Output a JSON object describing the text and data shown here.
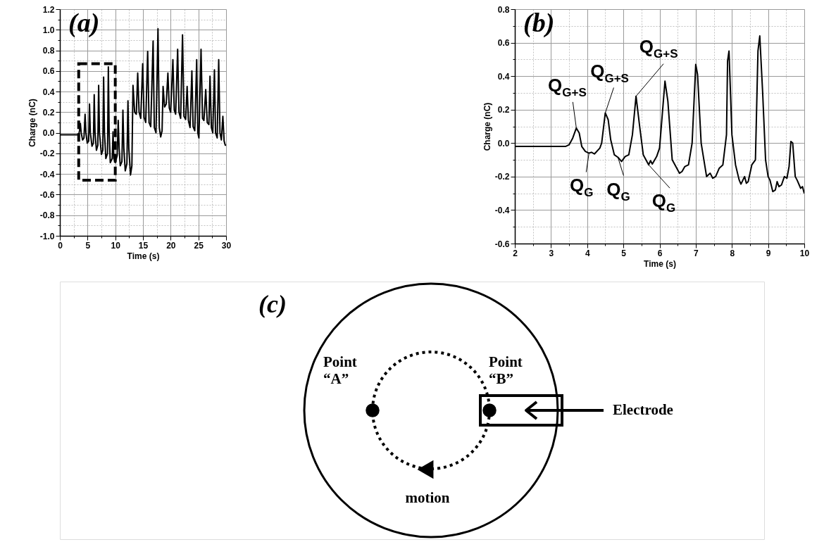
{
  "chart_data": [
    {
      "type": "line",
      "title": "(a)",
      "xlabel": "Time (s)",
      "ylabel": "Charge (nC)",
      "xlim": [
        0,
        30
      ],
      "xticks": [
        0,
        {
          "value": 2.5,
          "label": null
        },
        5,
        {
          "value": 7.5,
          "label": null
        },
        10,
        {
          "value": 12.5,
          "label": null
        },
        15,
        {
          "value": 17.5,
          "label": null
        },
        20,
        {
          "value": 22.5,
          "label": null
        },
        25,
        {
          "value": 27.5,
          "label": null
        },
        30
      ],
      "ylim": [
        -1.0,
        1.2
      ],
      "yticks": [
        {
          "value": -1,
          "label": "-1.0"
        },
        {
          "value": -0.9,
          "label": null
        },
        -0.8,
        {
          "value": -0.7,
          "label": null
        },
        -0.6,
        {
          "value": -0.5,
          "label": null
        },
        -0.4,
        {
          "value": -0.3,
          "label": null
        },
        -0.2,
        {
          "value": -0.1,
          "label": null
        },
        {
          "value": 0,
          "label": "0.0"
        },
        {
          "value": 0.1,
          "label": null
        },
        0.2,
        {
          "value": 0.3,
          "label": null
        },
        0.4,
        {
          "value": 0.5,
          "label": null
        },
        0.6,
        {
          "value": 0.7,
          "label": null
        },
        0.8,
        {
          "value": 0.9,
          "label": null
        },
        {
          "value": 1,
          "label": "1.0"
        },
        {
          "value": 1.1,
          "label": null
        },
        1.2
      ],
      "grid": true,
      "x": [
        0,
        3.4,
        3.55,
        3.7,
        3.85,
        4.1,
        4.35,
        4.55,
        4.7,
        4.95,
        5.2,
        5.35,
        5.5,
        5.8,
        6.05,
        6.2,
        6.35,
        6.6,
        6.85,
        7.0,
        7.15,
        7.5,
        7.75,
        7.9,
        8.05,
        8.3,
        8.6,
        8.75,
        8.9,
        9.1,
        9.45,
        9.6,
        9.75,
        10.0,
        10.35,
        10.53,
        10.7,
        10.9,
        11.2,
        11.38,
        11.55,
        11.8,
        12.1,
        12.29,
        12.45,
        12.75,
        13.0,
        13.2,
        13.5,
        13.8,
        14.05,
        14.3,
        14.6,
        14.95,
        15.2,
        15.5,
        15.85,
        16.1,
        16.4,
        16.83,
        17.05,
        17.35,
        17.71,
        17.95,
        18.2,
        18.45,
        18.63,
        18.9,
        19.2,
        19.5,
        19.75,
        20.0,
        20.4,
        20.65,
        20.9,
        21.26,
        21.5,
        21.8,
        22.14,
        22.4,
        22.7,
        22.97,
        23.2,
        23.5,
        23.83,
        24.05,
        24.35,
        24.7,
        24.9,
        25.1,
        25.48,
        25.75,
        26.0,
        26.33,
        26.6,
        26.9,
        27.1,
        27.35,
        27.6,
        27.9,
        28.1,
        28.4,
        28.67,
        28.9,
        29.15,
        29.42,
        29.65,
        29.85,
        30
      ],
      "series": [
        {
          "color": "#000000",
          "values": [
            -0.02,
            -0.02,
            0.02,
            0.09,
            0.0,
            -0.07,
            -0.05,
            0.18,
            0.0,
            -0.1,
            -0.08,
            0.28,
            0.0,
            -0.13,
            -0.1,
            0.37,
            0.0,
            -0.17,
            -0.12,
            0.46,
            0.0,
            -0.21,
            -0.17,
            0.54,
            0.0,
            -0.25,
            -0.2,
            0.64,
            0.0,
            -0.29,
            -0.25,
            0.01,
            -0.25,
            -0.29,
            -0.22,
            0.12,
            -0.15,
            -0.32,
            -0.28,
            0.22,
            -0.15,
            -0.37,
            -0.3,
            0.31,
            -0.15,
            -0.41,
            -0.32,
            0.46,
            0.2,
            0.18,
            0.58,
            0.2,
            0.14,
            0.67,
            0.15,
            0.1,
            0.79,
            0.1,
            0.06,
            0.89,
            0.05,
            0.0,
            1.01,
            0.05,
            -0.04,
            0.02,
            0.45,
            0.25,
            0.28,
            0.58,
            0.24,
            0.2,
            0.71,
            0.22,
            0.18,
            0.81,
            0.2,
            0.14,
            0.95,
            0.16,
            0.13,
            0.45,
            0.12,
            0.05,
            0.6,
            0.06,
            0.02,
            0.71,
            0.0,
            -0.05,
            0.81,
            0.14,
            0.12,
            0.42,
            0.1,
            0.08,
            0.55,
            0.05,
            0.0,
            0.61,
            0.0,
            -0.05,
            0.71,
            0.0,
            -0.07,
            0.16,
            -0.08,
            -0.12,
            -0.12
          ]
        }
      ]
    },
    {
      "type": "line",
      "title": "(b)",
      "xlabel": "Time (s)",
      "ylabel": "Charge (nC)",
      "xlim": [
        2,
        10
      ],
      "xticks": [
        2,
        {
          "value": 2.5,
          "label": null
        },
        3,
        {
          "value": 3.5,
          "label": null
        },
        4,
        {
          "value": 4.5,
          "label": null
        },
        5,
        {
          "value": 5.5,
          "label": null
        },
        6,
        {
          "value": 6.5,
          "label": null
        },
        7,
        {
          "value": 7.5,
          "label": null
        },
        8,
        {
          "value": 8.5,
          "label": null
        },
        9,
        {
          "value": 9.5,
          "label": null
        },
        10
      ],
      "ylim": [
        -0.6,
        0.8
      ],
      "yticks": [
        -0.6,
        {
          "value": -0.5,
          "label": null
        },
        -0.4,
        {
          "value": -0.3,
          "label": null
        },
        -0.2,
        {
          "value": -0.1,
          "label": null
        },
        {
          "value": 0,
          "label": "0.0"
        },
        {
          "value": 0.1,
          "label": null
        },
        0.2,
        {
          "value": 0.3,
          "label": null
        },
        0.4,
        {
          "value": 0.5,
          "label": null
        },
        0.6,
        {
          "value": 0.7,
          "label": null
        },
        0.8
      ],
      "grid": true,
      "x": [
        2,
        3.4,
        3.5,
        3.6,
        3.7,
        3.78,
        3.85,
        3.95,
        4.05,
        4.12,
        4.2,
        4.35,
        4.4,
        4.5,
        4.58,
        4.65,
        4.75,
        4.85,
        4.95,
        5.05,
        5.15,
        5.25,
        5.35,
        5.45,
        5.55,
        5.7,
        5.75,
        5.8,
        5.92,
        6.0,
        6.15,
        6.23,
        6.35,
        6.45,
        6.55,
        6.62,
        6.7,
        6.8,
        6.9,
        7.0,
        7.05,
        7.15,
        7.3,
        7.4,
        7.47,
        7.55,
        7.65,
        7.75,
        7.85,
        7.88,
        7.92,
        8.0,
        8.1,
        8.2,
        8.25,
        8.35,
        8.4,
        8.45,
        8.55,
        8.65,
        8.72,
        8.77,
        8.85,
        8.93,
        9.0,
        9.05,
        9.13,
        9.2,
        9.25,
        9.3,
        9.37,
        9.45,
        9.52,
        9.58,
        9.63,
        9.68,
        9.75,
        9.8,
        9.9,
        9.95,
        10
      ],
      "series": [
        {
          "color": "#000000",
          "values": [
            -0.02,
            -0.02,
            -0.01,
            0.03,
            0.09,
            0.06,
            -0.02,
            -0.05,
            -0.06,
            -0.055,
            -0.065,
            -0.03,
            0.0,
            0.18,
            0.14,
            0.02,
            -0.07,
            -0.085,
            -0.11,
            -0.08,
            -0.07,
            0.05,
            0.28,
            0.1,
            -0.07,
            -0.13,
            -0.105,
            -0.125,
            -0.08,
            -0.03,
            0.37,
            0.25,
            -0.1,
            -0.14,
            -0.18,
            -0.17,
            -0.14,
            -0.13,
            0.0,
            0.47,
            0.41,
            0.0,
            -0.2,
            -0.18,
            -0.21,
            -0.2,
            -0.15,
            -0.13,
            0.05,
            0.49,
            0.55,
            0.05,
            -0.13,
            -0.22,
            -0.245,
            -0.2,
            -0.24,
            -0.23,
            -0.13,
            -0.1,
            0.55,
            0.64,
            0.3,
            -0.1,
            -0.2,
            -0.22,
            -0.29,
            -0.28,
            -0.23,
            -0.26,
            -0.25,
            -0.2,
            -0.21,
            -0.14,
            0.01,
            0.0,
            -0.2,
            -0.22,
            -0.27,
            -0.26,
            -0.3
          ]
        }
      ],
      "annotations": [
        {
          "text": "Q$_{G+S}$",
          "x": 3.7,
          "y": 0.09
        },
        {
          "text": "Q$_{G+S}$",
          "x": 4.5,
          "y": 0.18
        },
        {
          "text": "Q$_{G+S}$",
          "x": 5.35,
          "y": 0.28
        },
        {
          "text": "Q$_{G}$",
          "x": 4.05,
          "y": -0.06
        },
        {
          "text": "Q$_{G}$",
          "x": 4.85,
          "y": -0.085
        },
        {
          "text": "Q$_{G}$",
          "x": 5.7,
          "y": -0.13
        }
      ]
    },
    {
      "type": "other",
      "title": "(c)",
      "annotations": [
        "Point “A”",
        "Point “B”",
        "Electrode",
        "motion"
      ]
    }
  ]
}
